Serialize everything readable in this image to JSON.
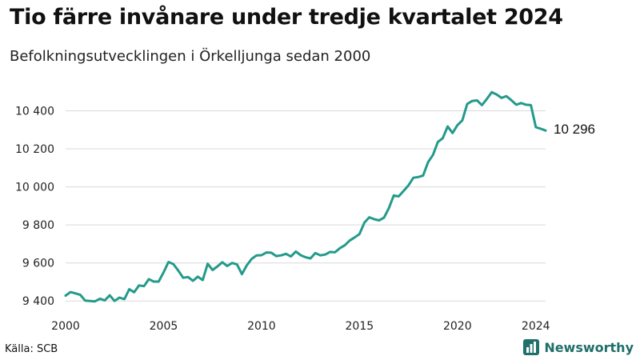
{
  "header": {
    "title": "Tio färre invånare under tredje kvartalet 2024",
    "subtitle": "Befolkningsutvecklingen i Örkelljunga sedan 2000"
  },
  "footer": {
    "source": "Källa: SCB",
    "brand": "Newsworthy"
  },
  "colors": {
    "line": "#239a8a",
    "grid": "#d9d9d9",
    "brand": "#1f6f6a"
  },
  "chart_data": {
    "type": "line",
    "title": "Tio färre invånare under tredje kvartalet 2024",
    "subtitle": "Befolkningsutvecklingen i Örkelljunga sedan 2000",
    "xlabel": "",
    "ylabel": "",
    "xlim": [
      2000,
      2024.5
    ],
    "ylim": [
      9380,
      10520
    ],
    "grid": true,
    "x_ticks": [
      2000,
      2005,
      2010,
      2015,
      2020,
      2024
    ],
    "x_tick_labels": [
      "2000",
      "2005",
      "2010",
      "2015",
      "2020",
      "2024"
    ],
    "y_ticks": [
      9400,
      9600,
      9800,
      10000,
      10200,
      10400
    ],
    "y_tick_labels": [
      "9 400",
      "9 600",
      "9 800",
      "10 000",
      "10 200",
      "10 400"
    ],
    "end_label": "10 296",
    "series": [
      {
        "x": [
          2000.0,
          2000.25,
          2000.5,
          2000.75,
          2001.0,
          2001.25,
          2001.5,
          2001.75,
          2002.0,
          2002.25,
          2002.5,
          2002.75,
          2003.0,
          2003.25,
          2003.5,
          2003.75,
          2004.0,
          2004.25,
          2004.5,
          2004.75,
          2005.0,
          2005.25,
          2005.5,
          2005.75,
          2006.0,
          2006.25,
          2006.5,
          2006.75,
          2007.0,
          2007.25,
          2007.5,
          2007.75,
          2008.0,
          2008.25,
          2008.5,
          2008.75,
          2009.0,
          2009.25,
          2009.5,
          2009.75,
          2010.0,
          2010.25,
          2010.5,
          2010.75,
          2011.0,
          2011.25,
          2011.5,
          2011.75,
          2012.0,
          2012.25,
          2012.5,
          2012.75,
          2013.0,
          2013.25,
          2013.5,
          2013.75,
          2014.0,
          2014.25,
          2014.5,
          2014.75,
          2015.0,
          2015.25,
          2015.5,
          2015.75,
          2016.0,
          2016.25,
          2016.5,
          2016.75,
          2017.0,
          2017.25,
          2017.5,
          2017.75,
          2018.0,
          2018.25,
          2018.5,
          2018.75,
          2019.0,
          2019.25,
          2019.5,
          2019.75,
          2020.0,
          2020.25,
          2020.5,
          2020.75,
          2021.0,
          2021.25,
          2021.5,
          2021.75,
          2022.0,
          2022.25,
          2022.5,
          2022.75,
          2023.0,
          2023.25,
          2023.5,
          2023.75,
          2024.0,
          2024.25,
          2024.5
        ],
        "values": [
          9428,
          9447,
          9440,
          9432,
          9402,
          9400,
          9398,
          9412,
          9403,
          9430,
          9400,
          9418,
          9410,
          9462,
          9446,
          9482,
          9478,
          9515,
          9502,
          9502,
          9550,
          9605,
          9594,
          9560,
          9522,
          9526,
          9506,
          9528,
          9510,
          9596,
          9563,
          9582,
          9604,
          9584,
          9600,
          9592,
          9541,
          9588,
          9622,
          9640,
          9641,
          9655,
          9654,
          9636,
          9640,
          9648,
          9634,
          9660,
          9641,
          9630,
          9624,
          9652,
          9640,
          9644,
          9658,
          9656,
          9678,
          9693,
          9718,
          9734,
          9752,
          9812,
          9840,
          9830,
          9824,
          9838,
          9888,
          9955,
          9950,
          9978,
          10008,
          10048,
          10052,
          10060,
          10130,
          10168,
          10236,
          10256,
          10318,
          10283,
          10325,
          10350,
          10436,
          10452,
          10455,
          10430,
          10462,
          10498,
          10486,
          10468,
          10477,
          10456,
          10432,
          10441,
          10432,
          10430,
          10314,
          10306,
          10296
        ]
      }
    ]
  }
}
